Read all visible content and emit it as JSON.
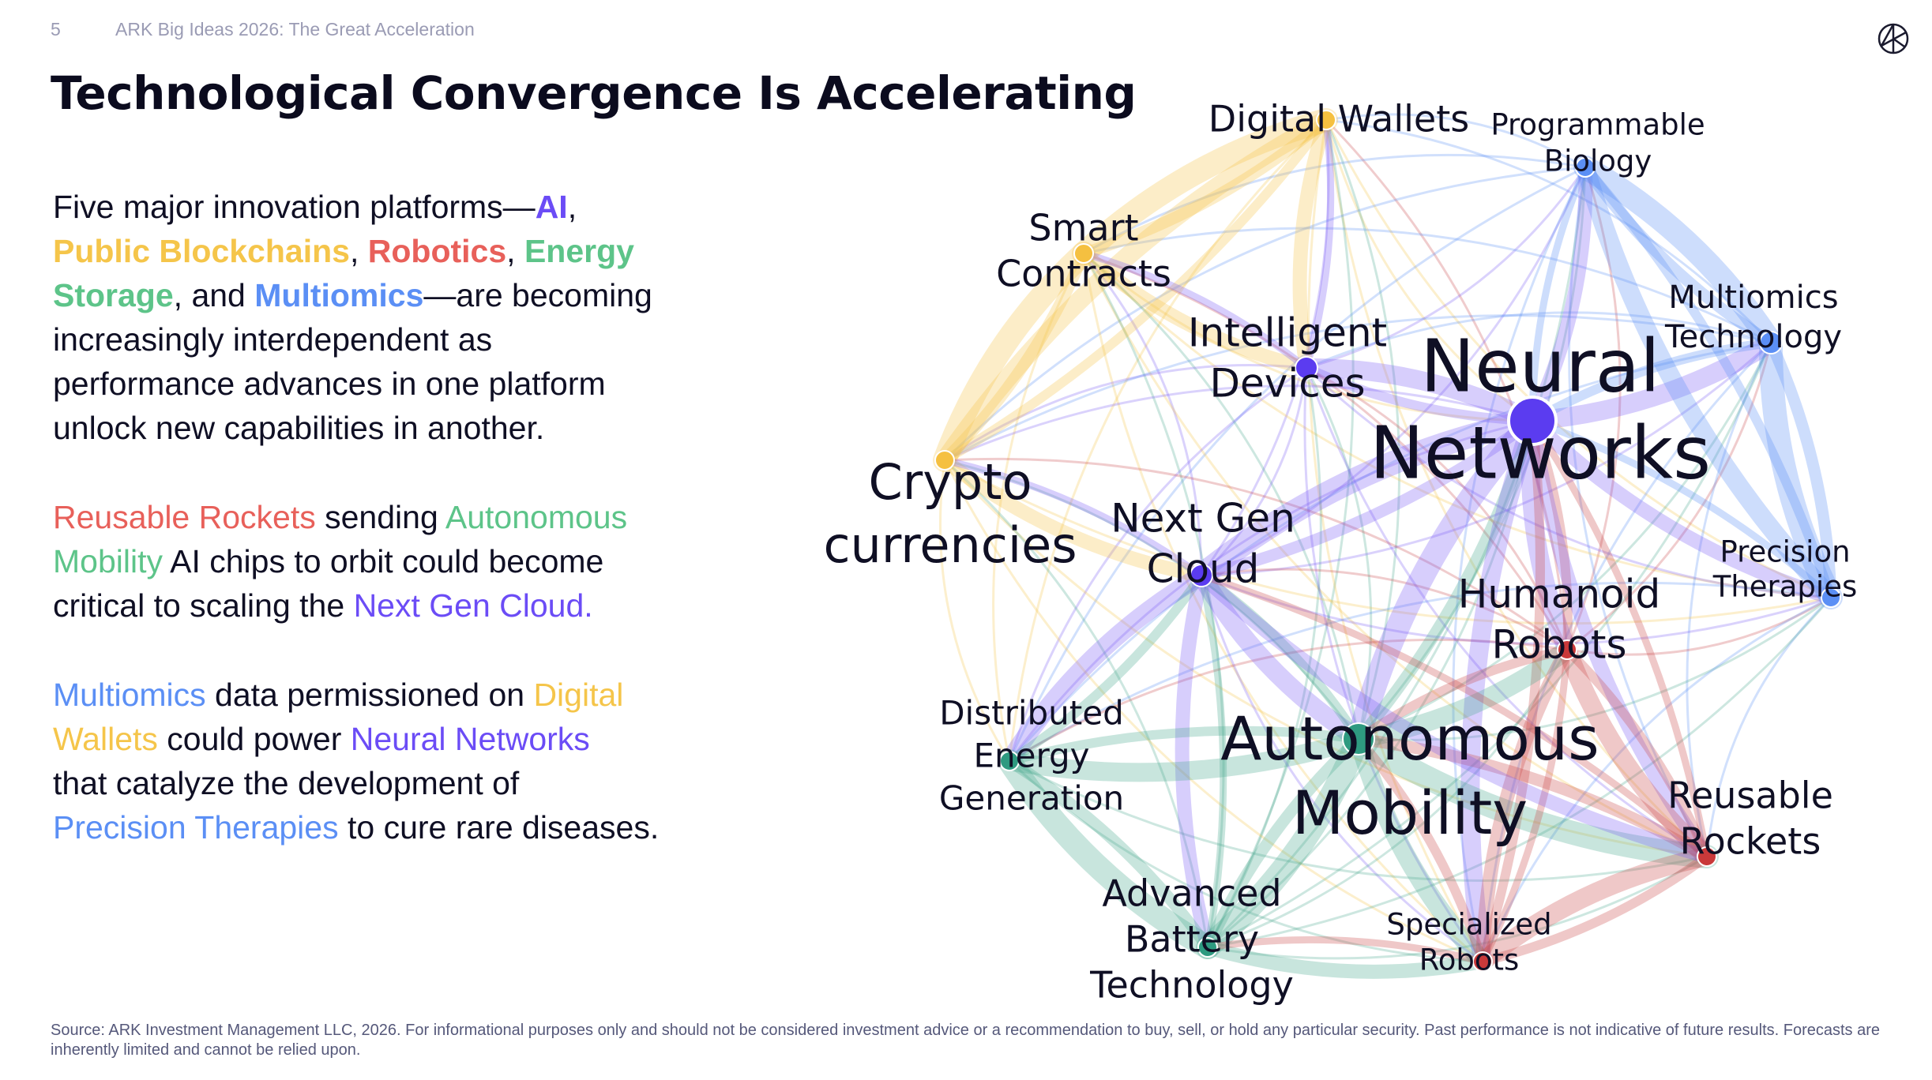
{
  "header": {
    "page_number": "5",
    "deck_title": "ARK Big Ideas 2026: The Great Acceleration"
  },
  "title": "Technological Convergence Is Accelerating",
  "logo": {
    "icon": "ark-logo-icon",
    "text": "ARK"
  },
  "colors": {
    "ai": "#6b4cf6",
    "blockchain": "#f5c54a",
    "robotics": "#e8605a",
    "energy": "#5dc489",
    "multiomics": "#5b8ff5",
    "text": "#0f0f24"
  },
  "paragraphs": [
    {
      "lines": [
        [
          {
            "t": "Five major innovation platforms—"
          },
          {
            "t": "AI",
            "c": "ai",
            "b": true
          },
          {
            "t": ","
          }
        ],
        [
          {
            "t": "Public Blockchains",
            "c": "blockchain",
            "b": true
          },
          {
            "t": ", "
          },
          {
            "t": "Robotics",
            "c": "robotics",
            "b": true
          },
          {
            "t": ", "
          },
          {
            "t": "Energy",
            "c": "energy",
            "b": true
          }
        ],
        [
          {
            "t": "Storage",
            "c": "energy",
            "b": true
          },
          {
            "t": ", and "
          },
          {
            "t": "Multiomics",
            "c": "multiomics",
            "b": true
          },
          {
            "t": "—are becoming"
          }
        ],
        [
          {
            "t": "increasingly interdependent as"
          }
        ],
        [
          {
            "t": "performance advances in one platform"
          }
        ],
        [
          {
            "t": "unlock new capabilities in another."
          }
        ]
      ]
    },
    {
      "lines": [
        [
          {
            "t": "Reusable Rockets",
            "c": "robotics"
          },
          {
            "t": " sending "
          },
          {
            "t": "Autonomous",
            "c": "energy"
          }
        ],
        [
          {
            "t": "Mobility",
            "c": "energy"
          },
          {
            "t": " AI chips to orbit could become"
          }
        ],
        [
          {
            "t": "critical to scaling the "
          },
          {
            "t": "Next Gen Cloud.",
            "c": "ai"
          }
        ]
      ]
    },
    {
      "lines": [
        [
          {
            "t": "Multiomics",
            "c": "multiomics"
          },
          {
            "t": " data permissioned on "
          },
          {
            "t": "Digital",
            "c": "blockchain"
          }
        ],
        [
          {
            "t": "Wallets",
            "c": "blockchain"
          },
          {
            "t": " could power "
          },
          {
            "t": "Neural Networks",
            "c": "ai"
          }
        ],
        [
          {
            "t": "that catalyze the development of"
          }
        ],
        [
          {
            "t": "Precision Therapies",
            "c": "multiomics"
          },
          {
            "t": " to cure rare diseases."
          }
        ]
      ]
    }
  ],
  "network": {
    "nodes": [
      {
        "id": "dw",
        "label": [
          "Digital Wallets"
        ],
        "platform": "blockchain"
      },
      {
        "id": "pb",
        "label": [
          "Programmable",
          "Biology"
        ],
        "platform": "multiomics"
      },
      {
        "id": "sc",
        "label": [
          "Smart",
          "Contracts"
        ],
        "platform": "blockchain"
      },
      {
        "id": "id",
        "label": [
          "Intelligent",
          "Devices"
        ],
        "platform": "ai"
      },
      {
        "id": "nn",
        "label": [
          "Neural",
          "Networks"
        ],
        "platform": "ai"
      },
      {
        "id": "mt",
        "label": [
          "Multiomics",
          "Technology"
        ],
        "platform": "multiomics"
      },
      {
        "id": "cc",
        "label": [
          "Crypto",
          "currencies"
        ],
        "platform": "blockchain"
      },
      {
        "id": "ngc",
        "label": [
          "Next Gen",
          "Cloud"
        ],
        "platform": "ai"
      },
      {
        "id": "pt",
        "label": [
          "Precision",
          "Therapies"
        ],
        "platform": "multiomics"
      },
      {
        "id": "hr",
        "label": [
          "Humanoid",
          "Robots"
        ],
        "platform": "robotics"
      },
      {
        "id": "de",
        "label": [
          "Distributed",
          "Energy",
          "Generation"
        ],
        "platform": "energy"
      },
      {
        "id": "am",
        "label": [
          "Autonomous",
          "Mobility"
        ],
        "platform": "energy"
      },
      {
        "id": "rr",
        "label": [
          "Reusable",
          "Rockets"
        ],
        "platform": "robotics"
      },
      {
        "id": "ab",
        "label": [
          "Advanced",
          "Battery",
          "Technology"
        ],
        "platform": "energy"
      },
      {
        "id": "sr",
        "label": [
          "Specialized",
          "Robots"
        ],
        "platform": "robotics"
      }
    ],
    "connections": [
      [
        "nn",
        "id",
        4
      ],
      [
        "nn",
        "ngc",
        5
      ],
      [
        "nn",
        "hr",
        4
      ],
      [
        "nn",
        "am",
        5
      ],
      [
        "nn",
        "mt",
        4
      ],
      [
        "nn",
        "pt",
        3
      ],
      [
        "nn",
        "rr",
        3
      ],
      [
        "nn",
        "sr",
        4
      ],
      [
        "nn",
        "pb",
        3
      ],
      [
        "mt",
        "pb",
        5
      ],
      [
        "mt",
        "pt",
        5
      ],
      [
        "pb",
        "pt",
        4
      ],
      [
        "dw",
        "sc",
        5
      ],
      [
        "sc",
        "cc",
        5
      ],
      [
        "dw",
        "cc",
        4
      ],
      [
        "dw",
        "id",
        3
      ],
      [
        "cc",
        "ngc",
        3
      ],
      [
        "sc",
        "id",
        3
      ],
      [
        "ngc",
        "de",
        4
      ],
      [
        "ngc",
        "am",
        4
      ],
      [
        "ngc",
        "ab",
        3
      ],
      [
        "de",
        "ab",
        5
      ],
      [
        "de",
        "am",
        4
      ],
      [
        "ab",
        "am",
        5
      ],
      [
        "am",
        "hr",
        4
      ],
      [
        "am",
        "rr",
        5
      ],
      [
        "am",
        "sr",
        4
      ],
      [
        "hr",
        "rr",
        4
      ],
      [
        "hr",
        "sr",
        3
      ],
      [
        "rr",
        "sr",
        4
      ],
      [
        "ngc",
        "rr",
        3
      ],
      [
        "ab",
        "sr",
        3
      ]
    ]
  },
  "footer": "Source: ARK Investment Management LLC, 2026. For informational purposes only and should not be considered investment advice or a recommendation to buy, sell, or hold any particular security. Past performance is not indicative of future results. Forecasts are inherently limited and cannot be relied upon."
}
